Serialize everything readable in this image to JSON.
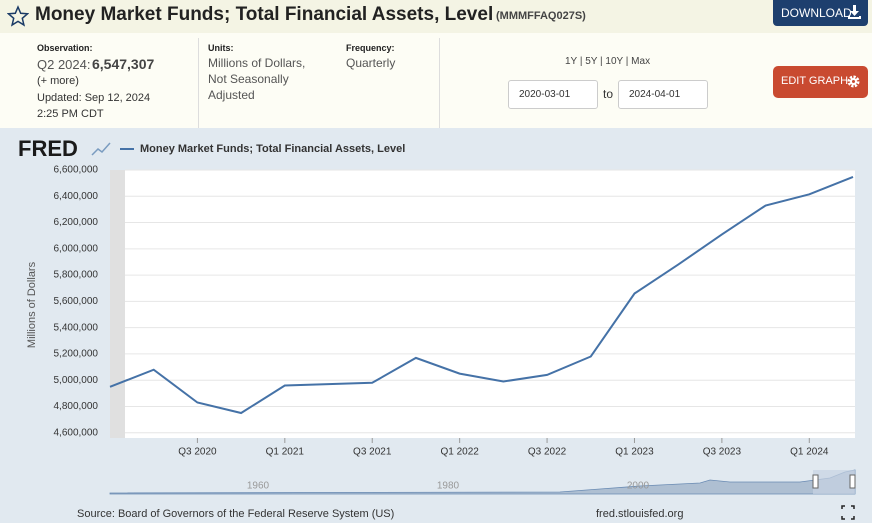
{
  "header": {
    "title": "Money Market Funds; Total Financial Assets, Level",
    "series_id": "(MMMFFAQ027S)",
    "download": "DOWNLOAD"
  },
  "info": {
    "observation_label": "Observation:",
    "observation_period": "Q2 2024:",
    "observation_value": "6,547,307",
    "more": "(+ more)",
    "updated": "Updated: Sep 12, 2024",
    "time": "2:25 PM CDT",
    "units_label": "Units:",
    "units": [
      "Millions of Dollars,",
      "Not Seasonally",
      "Adjusted"
    ],
    "frequency_label": "Frequency:",
    "frequency": "Quarterly",
    "ranges": "1Y | 5Y | 10Y | Max",
    "start": "2020-03-01",
    "to": "to",
    "end": "2024-04-01",
    "edit": "EDIT GRAPH"
  },
  "chart_data": {
    "type": "line",
    "logo": "FRED",
    "y_label": "Millions of Dollars",
    "categories": [
      null,
      null,
      "Q3 2020",
      null,
      "Q1 2021",
      null,
      "Q3 2021",
      null,
      "Q1 2022",
      null,
      "Q3 2022",
      null,
      "Q1 2023",
      null,
      "Q3 2023",
      null,
      "Q1 2024",
      null
    ],
    "series": [
      {
        "name": "Money Market Funds; Total Financial Assets, Level",
        "color": "#4572a7",
        "values": [
          4950000,
          5080000,
          4830000,
          4750000,
          4960000,
          4970000,
          4980000,
          5170000,
          5050000,
          4990000,
          5040000,
          5180000,
          5660000,
          5880000,
          6110000,
          6330000,
          6415000,
          6547307
        ]
      }
    ],
    "ylim": [
      4560000,
      6600000
    ],
    "yticks": [
      {
        "value": 4600000,
        "label": "4,600,000"
      },
      {
        "value": 4800000,
        "label": "4,800,000"
      },
      {
        "value": 5000000,
        "label": "5,000,000"
      },
      {
        "value": 5200000,
        "label": "5,200,000"
      },
      {
        "value": 5400000,
        "label": "5,400,000"
      },
      {
        "value": 5600000,
        "label": "5,600,000"
      },
      {
        "value": 5800000,
        "label": "5,800,000"
      },
      {
        "value": 6000000,
        "label": "6,000,000"
      },
      {
        "value": 6200000,
        "label": "6,200,000"
      },
      {
        "value": 6400000,
        "label": "6,400,000"
      },
      {
        "value": 6600000,
        "label": "6,600,000"
      }
    ],
    "grid": true
  },
  "navigator": {
    "labels": [
      "1960",
      "1980",
      "2000"
    ]
  },
  "footer": {
    "source": "Source: Board of Governors of the Federal Reserve System (US)",
    "site": "fred.stlouisfed.org"
  }
}
